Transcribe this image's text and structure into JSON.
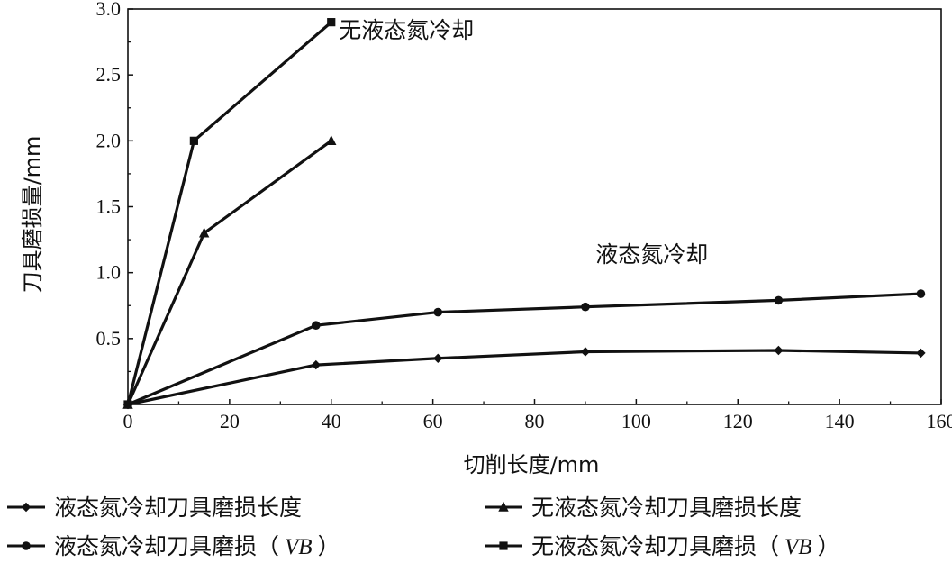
{
  "chart_data": {
    "type": "line",
    "xlabel": "切削长度/mm",
    "ylabel": "刀具磨损量/mm",
    "xlim": [
      0,
      160
    ],
    "ylim": [
      0,
      3.0
    ],
    "x_ticks": [
      "0",
      "20",
      "40",
      "60",
      "80",
      "100",
      "120",
      "140",
      "160"
    ],
    "y_ticks": [
      "0.5",
      "1.0",
      "1.5",
      "2.0",
      "2.5",
      "3.0"
    ],
    "grid": false,
    "legend_position": "bottom",
    "series": [
      {
        "name": "液态氮冷却刀具磨损长度",
        "marker": "diamond",
        "x": [
          0,
          37,
          61,
          90,
          128,
          156
        ],
        "y": [
          0,
          0.3,
          0.35,
          0.4,
          0.41,
          0.39
        ]
      },
      {
        "name": "无液态氮冷却刀具磨损长度",
        "marker": "triangle",
        "x": [
          0,
          15,
          40
        ],
        "y": [
          0,
          1.3,
          2.0
        ]
      },
      {
        "name": "液态氮冷却刀具磨损（VB）",
        "name_prefix": "液态氮冷却刀具磨损（",
        "name_italic": "VB",
        "name_suffix": "）",
        "marker": "circle",
        "x": [
          0,
          37,
          61,
          90,
          128,
          156
        ],
        "y": [
          0,
          0.6,
          0.7,
          0.74,
          0.79,
          0.84
        ]
      },
      {
        "name": "无液态氮冷却刀具磨损（VB）",
        "name_prefix": "无液态氮冷却刀具磨损（",
        "name_italic": "VB",
        "name_suffix": "）",
        "marker": "square",
        "x": [
          0,
          13,
          40
        ],
        "y": [
          0,
          2.0,
          2.9
        ]
      }
    ],
    "annotations": [
      {
        "id": "annot-no-ln2",
        "text": "无液态氮冷却",
        "x": 41.5,
        "y": 2.78
      },
      {
        "id": "annot-ln2",
        "text": "液态氮冷却",
        "x": 92,
        "y": 1.08
      }
    ]
  }
}
